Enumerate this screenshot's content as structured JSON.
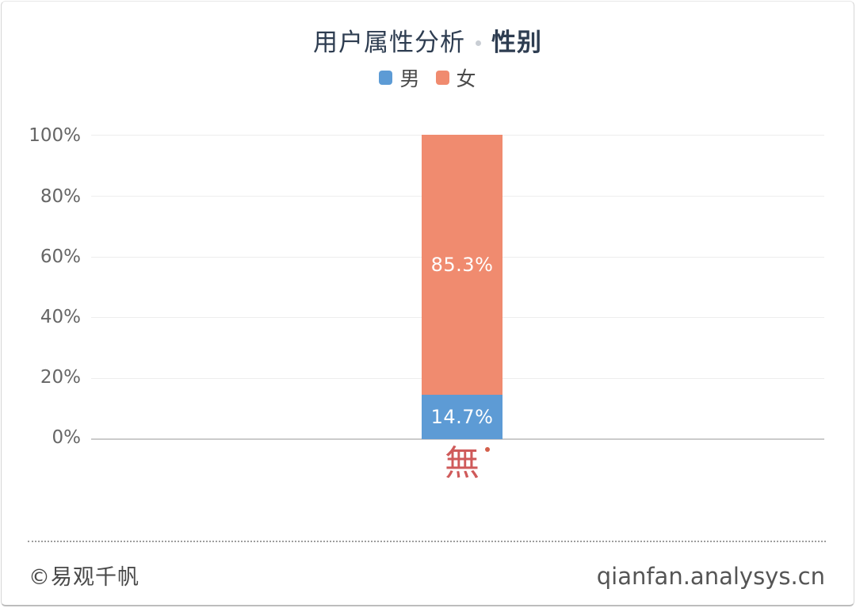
{
  "header": {
    "title_main": "用户属性分析",
    "title_sub": "性别"
  },
  "chart_data": {
    "type": "bar",
    "stacked": true,
    "title": "用户属性分析 · 性别",
    "categories": [
      "無"
    ],
    "series": [
      {
        "name": "男",
        "values": [
          14.7
        ],
        "label": "14.7%",
        "color": "#5D9BD5"
      },
      {
        "name": "女",
        "values": [
          85.3
        ],
        "label": "85.3%",
        "color": "#F08B6F"
      }
    ],
    "ylim": [
      0,
      100
    ],
    "yticks": [
      "100%",
      "80%",
      "60%",
      "40%",
      "20%",
      "0%"
    ],
    "grid": true,
    "legend_position": "top",
    "bar_label_color": "#ffffff",
    "category_label_color": "#CF5A5A"
  },
  "footer": {
    "copyright": "©易观千帆",
    "site": "qianfan.analysys.cn"
  },
  "colors": {
    "title": "#2E3D51",
    "axis_label": "#666666",
    "gridline": "#ededed",
    "zero_line": "#cbcbcb",
    "separator_dot": "#C9CED4"
  }
}
